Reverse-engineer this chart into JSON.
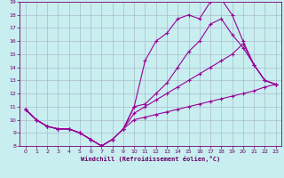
{
  "bg_color": "#c8eef0",
  "grid_color": "#aabbcc",
  "line_color": "#990099",
  "xlabel": "Windchill (Refroidissement éolien,°C)",
  "xlim": [
    -0.5,
    23.5
  ],
  "ylim": [
    8,
    19
  ],
  "xticks": [
    0,
    1,
    2,
    3,
    4,
    5,
    6,
    7,
    8,
    9,
    10,
    11,
    12,
    13,
    14,
    15,
    16,
    17,
    18,
    19,
    20,
    21,
    22,
    23
  ],
  "yticks": [
    8,
    9,
    10,
    11,
    12,
    13,
    14,
    15,
    16,
    17,
    18,
    19
  ],
  "series": [
    {
      "x": [
        0,
        1,
        2,
        3,
        4,
        5,
        6,
        7,
        8,
        9,
        10,
        11,
        12,
        13,
        14,
        15,
        16,
        17,
        18,
        19,
        20,
        21,
        22,
        23
      ],
      "y": [
        10.8,
        10.0,
        9.5,
        9.3,
        9.3,
        9.0,
        8.5,
        8.0,
        8.5,
        9.3,
        11.0,
        14.5,
        16.0,
        16.6,
        17.7,
        18.0,
        17.7,
        19.0,
        19.2,
        18.0,
        16.0,
        14.2,
        13.0,
        12.7
      ]
    },
    {
      "x": [
        0,
        1,
        2,
        3,
        4,
        5,
        6,
        7,
        8,
        9,
        10,
        11,
        12,
        13,
        14,
        15,
        16,
        17,
        18,
        19,
        20,
        21,
        22,
        23
      ],
      "y": [
        10.8,
        10.0,
        9.5,
        9.3,
        9.3,
        9.0,
        8.5,
        8.0,
        8.5,
        9.3,
        11.0,
        11.2,
        12.0,
        12.8,
        14.0,
        15.2,
        16.0,
        17.3,
        17.7,
        16.5,
        15.5,
        14.2,
        13.0,
        12.7
      ]
    },
    {
      "x": [
        0,
        1,
        2,
        3,
        4,
        5,
        6,
        7,
        8,
        9,
        10,
        11,
        12,
        13,
        14,
        15,
        16,
        17,
        18,
        19,
        20,
        21,
        22,
        23
      ],
      "y": [
        10.8,
        10.0,
        9.5,
        9.3,
        9.3,
        9.0,
        8.5,
        8.0,
        8.5,
        9.3,
        10.5,
        11.0,
        11.5,
        12.0,
        12.5,
        13.0,
        13.5,
        14.0,
        14.5,
        15.0,
        15.8,
        14.2,
        13.0,
        12.7
      ]
    },
    {
      "x": [
        0,
        1,
        2,
        3,
        4,
        5,
        6,
        7,
        8,
        9,
        10,
        11,
        12,
        13,
        14,
        15,
        16,
        17,
        18,
        19,
        20,
        21,
        22,
        23
      ],
      "y": [
        10.8,
        10.0,
        9.5,
        9.3,
        9.3,
        9.0,
        8.5,
        8.0,
        8.5,
        9.3,
        10.0,
        10.2,
        10.4,
        10.6,
        10.8,
        11.0,
        11.2,
        11.4,
        11.6,
        11.8,
        12.0,
        12.2,
        12.5,
        12.7
      ]
    }
  ]
}
